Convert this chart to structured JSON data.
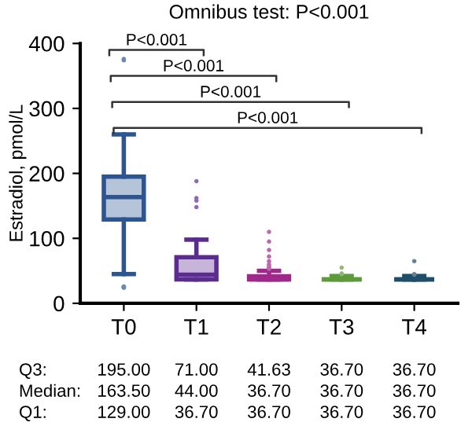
{
  "chart_data": {
    "type": "box",
    "title": "Omnibus test: P<0.001",
    "ylabel": "Estradiol, pmol/L",
    "categories": [
      "T0",
      "T1",
      "T2",
      "T3",
      "T4"
    ],
    "boxes": [
      {
        "low": 45,
        "q1": 129.0,
        "median": 163.5,
        "q3": 195.0,
        "high": 260,
        "outliers": [
          375,
          374,
          376,
          25,
          24,
          26,
          25,
          24
        ]
      },
      {
        "low": 36.7,
        "q1": 36.7,
        "median": 44.0,
        "q3": 71.0,
        "high": 98,
        "outliers": [
          188,
          162,
          158,
          148
        ]
      },
      {
        "low": 36.7,
        "q1": 36.7,
        "median": 36.7,
        "q3": 41.63,
        "high": 50,
        "outliers": [
          110,
          95,
          82,
          72,
          65,
          60,
          57,
          55,
          53
        ]
      },
      {
        "low": 36.7,
        "q1": 36.7,
        "median": 36.7,
        "q3": 36.7,
        "high": 42,
        "outliers": [
          55,
          46,
          45
        ]
      },
      {
        "low": 36.7,
        "q1": 36.7,
        "median": 36.7,
        "q3": 36.7,
        "high": 42,
        "outliers": [
          65,
          45,
          44
        ]
      }
    ],
    "colors": [
      "#2c5592",
      "#5b2c8f",
      "#a0288a",
      "#5d9a3c",
      "#1f4e6b"
    ],
    "ylim": [
      0,
      400
    ],
    "yticks": [
      0,
      100,
      200,
      300,
      400
    ],
    "grid": false,
    "annotations": [
      "P<0.001",
      "P<0.001",
      "P<0.001",
      "P<0.001",
      "Q3:",
      "195.00",
      "71.00",
      "41.63",
      "36.70",
      "36.70",
      "Median:",
      "163.50",
      "44.00",
      "36.70",
      "36.70",
      "36.70",
      "Q1:",
      "129.00",
      "36.70",
      "36.70",
      "36.70",
      "36.70"
    ]
  }
}
